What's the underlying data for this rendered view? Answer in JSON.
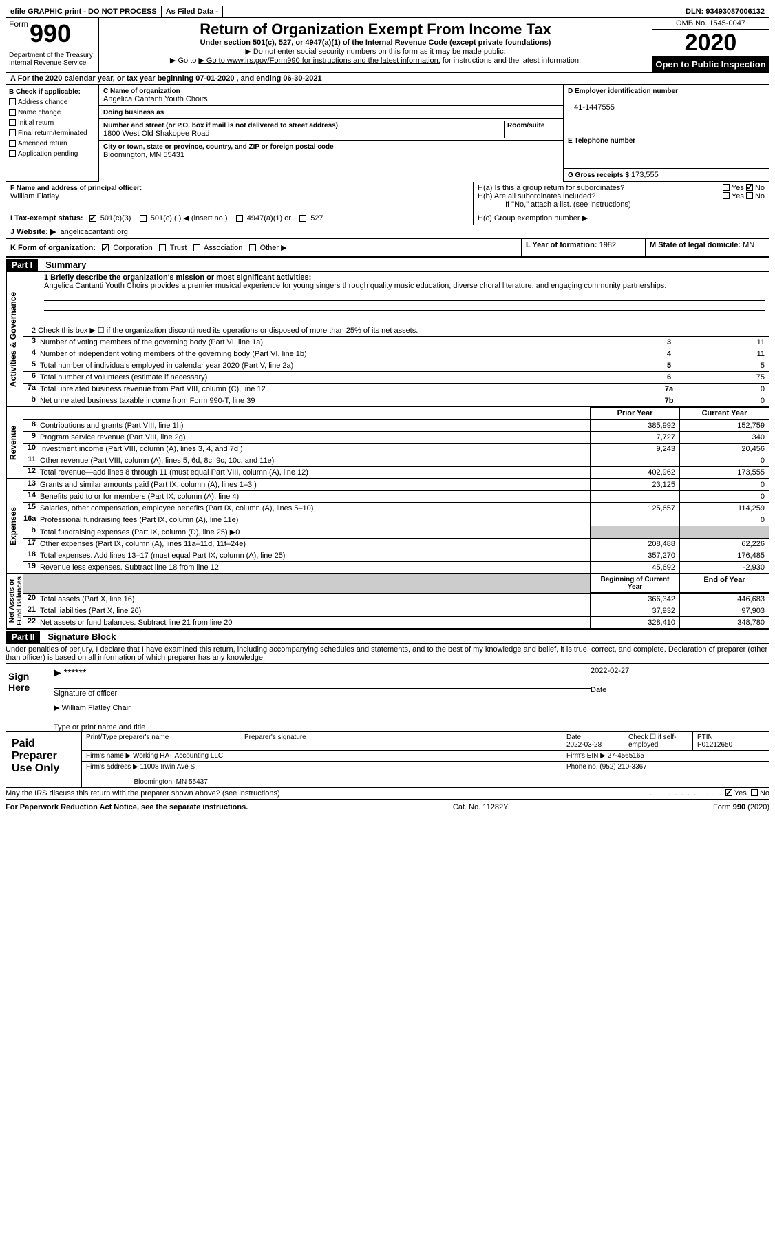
{
  "topbar": {
    "efile": "efile GRAPHIC print - DO NOT PROCESS",
    "asfiled": "As Filed Data -",
    "dln": "DLN: 93493087006132"
  },
  "header": {
    "form_word": "Form",
    "form_number": "990",
    "dept": "Department of the Treasury\nInternal Revenue Service",
    "title": "Return of Organization Exempt From Income Tax",
    "subtitle": "Under section 501(c), 527, or 4947(a)(1) of the Internal Revenue Code (except private foundations)",
    "hint1": "▶ Do not enter social security numbers on this form as it may be made public.",
    "hint2": "▶ Go to www.irs.gov/Form990 for instructions and the latest information.",
    "omb": "OMB No. 1545-0047",
    "year": "2020",
    "open": "Open to Public Inspection"
  },
  "sectA": "A   For the 2020 calendar year, or tax year beginning 07-01-2020   , and ending 06-30-2021",
  "B": {
    "label": "B Check if applicable:",
    "items": [
      "Address change",
      "Name change",
      "Initial return",
      "Final return/terminated",
      "Amended return",
      "Application pending"
    ]
  },
  "C": {
    "label": "C Name of organization",
    "name": "Angelica Cantanti Youth Choirs",
    "dba_label": "Doing business as",
    "addr_label": "Number and street (or P.O. box if mail is not delivered to street address)",
    "room_label": "Room/suite",
    "addr": "1800 West Old Shakopee Road",
    "city_label": "City or town, state or province, country, and ZIP or foreign postal code",
    "city": "Bloomington, MN  55431"
  },
  "D": {
    "label": "D Employer identification number",
    "value": "41-1447555"
  },
  "E": {
    "label": "E Telephone number",
    "value": ""
  },
  "F": {
    "label": "F  Name and address of principal officer:",
    "value": "William Flatley"
  },
  "G": {
    "label": "G Gross receipts $",
    "value": "173,555"
  },
  "H": {
    "a": "H(a)  Is this a group return for subordinates?",
    "b": "H(b)  Are all subordinates included?",
    "bnote": "If \"No,\" attach a list. (see instructions)",
    "c": "H(c)  Group exemption number ▶"
  },
  "yesno": {
    "yes": "Yes",
    "no": "No"
  },
  "I": {
    "label": "I   Tax-exempt status:",
    "opts": [
      "501(c)(3)",
      "501(c) (  ) ◀ (insert no.)",
      "4947(a)(1) or",
      "527"
    ]
  },
  "J": {
    "label": "J   Website: ▶",
    "value": "angelicacantanti.org"
  },
  "K": {
    "label": "K Form of organization:",
    "opts": [
      "Corporation",
      "Trust",
      "Association",
      "Other ▶"
    ]
  },
  "L": {
    "label": "L Year of formation:",
    "value": "1982"
  },
  "M": {
    "label": "M State of legal domicile:",
    "value": "MN"
  },
  "partI": {
    "num": "Part I",
    "title": "Summary"
  },
  "mission": {
    "label": "1  Briefly describe the organization's mission or most significant activities:",
    "text": "Angelica Cantanti Youth Choirs provides a premier musical experience for young singers through quality music education, diverse choral literature, and engaging community partnerships."
  },
  "line2": "2   Check this box ▶ ☐  if the organization discontinued its operations or disposed of more than 25% of its net assets.",
  "govlines": [
    {
      "n": "3",
      "t": "Number of voting members of the governing body (Part VI, line 1a)",
      "k": "3",
      "v": "11"
    },
    {
      "n": "4",
      "t": "Number of independent voting members of the governing body (Part VI, line 1b)",
      "k": "4",
      "v": "11"
    },
    {
      "n": "5",
      "t": "Total number of individuals employed in calendar year 2020 (Part V, line 2a)",
      "k": "5",
      "v": "5"
    },
    {
      "n": "6",
      "t": "Total number of volunteers (estimate if necessary)",
      "k": "6",
      "v": "75"
    },
    {
      "n": "7a",
      "t": "Total unrelated business revenue from Part VIII, column (C), line 12",
      "k": "7a",
      "v": "0"
    },
    {
      "n": "b",
      "t": "Net unrelated business taxable income from Form 990-T, line 39",
      "k": "7b",
      "v": "0"
    }
  ],
  "colheads": {
    "prior": "Prior Year",
    "current": "Current Year",
    "begin": "Beginning of Current Year",
    "end": "End of Year"
  },
  "revenue": [
    {
      "n": "8",
      "t": "Contributions and grants (Part VIII, line 1h)",
      "p": "385,992",
      "c": "152,759"
    },
    {
      "n": "9",
      "t": "Program service revenue (Part VIII, line 2g)",
      "p": "7,727",
      "c": "340"
    },
    {
      "n": "10",
      "t": "Investment income (Part VIII, column (A), lines 3, 4, and 7d )",
      "p": "9,243",
      "c": "20,456"
    },
    {
      "n": "11",
      "t": "Other revenue (Part VIII, column (A), lines 5, 6d, 8c, 9c, 10c, and 11e)",
      "p": "",
      "c": "0"
    },
    {
      "n": "12",
      "t": "Total revenue—add lines 8 through 11 (must equal Part VIII, column (A), line 12)",
      "p": "402,962",
      "c": "173,555"
    }
  ],
  "expenses": [
    {
      "n": "13",
      "t": "Grants and similar amounts paid (Part IX, column (A), lines 1–3 )",
      "p": "23,125",
      "c": "0"
    },
    {
      "n": "14",
      "t": "Benefits paid to or for members (Part IX, column (A), line 4)",
      "p": "",
      "c": "0"
    },
    {
      "n": "15",
      "t": "Salaries, other compensation, employee benefits (Part IX, column (A), lines 5–10)",
      "p": "125,657",
      "c": "114,259"
    },
    {
      "n": "16a",
      "t": "Professional fundraising fees (Part IX, column (A), line 11e)",
      "p": "",
      "c": "0"
    },
    {
      "n": "b",
      "t": "Total fundraising expenses (Part IX, column (D), line 25) ▶0",
      "p": "shade",
      "c": "shade"
    },
    {
      "n": "17",
      "t": "Other expenses (Part IX, column (A), lines 11a–11d, 11f–24e)",
      "p": "208,488",
      "c": "62,226"
    },
    {
      "n": "18",
      "t": "Total expenses. Add lines 13–17 (must equal Part IX, column (A), line 25)",
      "p": "357,270",
      "c": "176,485"
    },
    {
      "n": "19",
      "t": "Revenue less expenses. Subtract line 18 from line 12",
      "p": "45,692",
      "c": "-2,930"
    }
  ],
  "netassets": [
    {
      "n": "20",
      "t": "Total assets (Part X, line 16)",
      "p": "366,342",
      "c": "446,683"
    },
    {
      "n": "21",
      "t": "Total liabilities (Part X, line 26)",
      "p": "37,932",
      "c": "97,903"
    },
    {
      "n": "22",
      "t": "Net assets or fund balances. Subtract line 21 from line 20",
      "p": "328,410",
      "c": "348,780"
    }
  ],
  "vlabels": {
    "gov": "Activities & Governance",
    "rev": "Revenue",
    "exp": "Expenses",
    "net": "Net Assets or\nFund Balances"
  },
  "partII": {
    "num": "Part II",
    "title": "Signature Block"
  },
  "declare": "Under penalties of perjury, I declare that I have examined this return, including accompanying schedules and statements, and to the best of my knowledge and belief, it is true, correct, and complete. Declaration of preparer (other than officer) is based on all information of which preparer has any knowledge.",
  "sign": {
    "label": "Sign Here",
    "stars": "******",
    "sig_officer": "Signature of officer",
    "date": "2022-02-27",
    "date_label": "Date",
    "name": "William Flatley Chair",
    "name_label": "Type or print name and title"
  },
  "prep": {
    "label": "Paid Preparer Use Only",
    "r1": {
      "c1": "Print/Type preparer's name",
      "c2": "Preparer's signature",
      "c3l": "Date",
      "c3": "2022-03-28",
      "c4": "Check ☐ if self-employed",
      "c5l": "PTIN",
      "c5": "P01212650"
    },
    "r2": {
      "c1l": "Firm's name      ▶",
      "c1": "Working HAT Accounting LLC",
      "c2l": "Firm's EIN ▶",
      "c2": "27-4565165"
    },
    "r3": {
      "c1l": "Firm's address ▶",
      "c1": "11008 Irwin Ave S",
      "c1b": "Bloomington, MN  55437",
      "c2l": "Phone no.",
      "c2": "(952) 210-3367"
    }
  },
  "discuss": "May the IRS discuss this return with the preparer shown above? (see instructions)",
  "footer": {
    "left": "For Paperwork Reduction Act Notice, see the separate instructions.",
    "mid": "Cat. No. 11282Y",
    "right": "Form 990 (2020)"
  }
}
